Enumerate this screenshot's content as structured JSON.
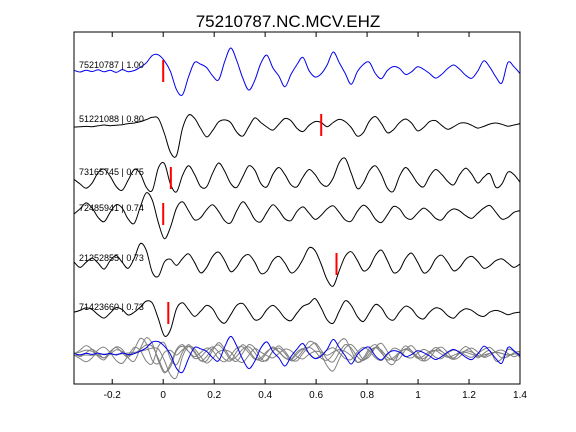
{
  "chart_data": {
    "type": "line",
    "title": "75210787.NC.MCV.EHZ",
    "xlabel": "",
    "ylabel": "",
    "xlim": [
      -0.35,
      1.4
    ],
    "x_ticks": [
      -0.2,
      0,
      0.2,
      0.4,
      0.6,
      0.8,
      1,
      1.2,
      1.4
    ],
    "x_tick_labels": [
      "-0.2",
      "0",
      "0.2",
      "0.4",
      "0.6",
      "0.8",
      "1",
      "1.2",
      "1.4"
    ],
    "grid": false,
    "colors": {
      "reference": "#0000ee",
      "trace": "#000000",
      "pick": "#ff0000",
      "stack": "#808080"
    },
    "series": [
      {
        "name": "75210787 | 1.00",
        "pick_time": 0.0,
        "values": [
          0.04,
          -0.06,
          0.05,
          -0.03,
          0.07,
          -0.05,
          0.05,
          -0.08,
          0.08,
          -0.04,
          0.03,
          0.22,
          0.48,
          0.92,
          0.95,
          0.6,
          -0.02,
          -1.1,
          -1.4,
          -0.35,
          0.5,
          0.4,
          0.2,
          -0.28,
          -0.52,
          0.55,
          1.35,
          0.62,
          -0.42,
          -1.12,
          -0.55,
          0.45,
          0.93,
          0.18,
          -0.3,
          -0.93,
          -0.2,
          0.38,
          0.8,
          0.02,
          -0.35,
          -0.17,
          0.35,
          1.12,
          0.5,
          -0.14,
          -0.78,
          -0.05,
          0.38,
          0.52,
          -0.15,
          -0.45,
          0.03,
          0.26,
          0.15,
          -0.2,
          -0.05,
          0.25,
          0.1,
          -0.15,
          -0.42,
          -0.2,
          0.15,
          0.35,
          0.1,
          -0.25,
          -0.43,
          0.0,
          0.6,
          0.22,
          -0.35,
          -0.7,
          0.5,
          0.25,
          -0.15
        ]
      },
      {
        "name": "51221088 | 0.80",
        "pick_time": 0.62,
        "values": [
          -0.12,
          -0.1,
          -0.08,
          -0.1,
          -0.05,
          0.0,
          -0.04,
          -0.02,
          0.02,
          0.08,
          0.12,
          0.2,
          0.32,
          0.45,
          0.38,
          -0.5,
          -1.6,
          -1.8,
          -0.2,
          0.58,
          0.4,
          -0.2,
          -0.7,
          -0.33,
          0.18,
          0.3,
          0.14,
          -0.42,
          -0.65,
          -0.1,
          0.42,
          0.15,
          -0.12,
          -0.3,
          0.05,
          0.38,
          0.25,
          -0.2,
          -0.38,
          -0.02,
          0.2,
          0.15,
          -0.1,
          0.15,
          0.33,
          0.2,
          -0.15,
          -0.65,
          -0.45,
          0.22,
          0.5,
          0.08,
          -0.45,
          -0.28,
          0.14,
          0.35,
          0.12,
          -0.34,
          -0.15,
          0.2,
          0.26,
          -0.02,
          -0.25,
          -0.1,
          0.1,
          0.12,
          -0.02,
          -0.18,
          -0.08,
          0.06,
          0.12,
          0.04,
          -0.07,
          0.0,
          0.08
        ]
      },
      {
        "name": "73165745 | 0.75",
        "pick_time": 0.03,
        "values": [
          -0.08,
          -0.35,
          -0.6,
          -0.3,
          0.32,
          0.52,
          0.1,
          -0.5,
          -0.72,
          -0.12,
          0.5,
          0.26,
          -0.55,
          -0.72,
          0.6,
          0.85,
          -0.35,
          -0.82,
          0.15,
          0.72,
          0.22,
          -0.5,
          -0.52,
          0.28,
          0.88,
          0.4,
          -0.32,
          -0.56,
          0.08,
          0.72,
          0.46,
          -0.32,
          -0.52,
          0.22,
          0.62,
          0.2,
          -0.4,
          -0.52,
          0.06,
          0.5,
          0.2,
          -0.32,
          -0.48,
          0.0,
          0.9,
          1.15,
          0.28,
          -0.62,
          -0.3,
          0.42,
          0.72,
          0.2,
          -0.6,
          -0.78,
          0.1,
          0.62,
          0.24,
          -0.3,
          -0.52,
          0.1,
          0.5,
          0.22,
          -0.2,
          -0.4,
          0.2,
          0.58,
          0.22,
          -0.3,
          0.05,
          0.25,
          -0.55,
          -0.35,
          0.35,
          0.2,
          -0.25
        ]
      },
      {
        "name": "72485941 | 0.74",
        "pick_time": 0.0,
        "values": [
          0.0,
          0.3,
          0.65,
          0.35,
          -0.2,
          -0.45,
          0.1,
          0.55,
          0.35,
          -0.3,
          -0.55,
          0.42,
          1.25,
          0.8,
          -0.52,
          -1.45,
          -0.78,
          0.35,
          0.72,
          0.2,
          -0.34,
          -0.22,
          0.25,
          0.55,
          0.15,
          -0.4,
          -0.52,
          0.18,
          0.72,
          0.3,
          -0.32,
          -0.46,
          0.1,
          0.55,
          0.2,
          -0.28,
          -0.38,
          0.15,
          0.42,
          0.05,
          -0.32,
          -0.08,
          0.3,
          0.48,
          0.1,
          -0.35,
          -0.42,
          0.15,
          0.52,
          0.25,
          -0.3,
          -0.5,
          -0.05,
          0.44,
          0.3,
          -0.18,
          -0.3,
          0.05,
          0.35,
          0.12,
          -0.25,
          -0.35,
          0.08,
          0.3,
          0.18,
          -0.1,
          -0.25,
          0.05,
          0.35,
          0.5,
          0.1,
          -0.3,
          -0.2,
          0.1,
          0.2
        ]
      },
      {
        "name": "21252855 | 0.73",
        "pick_time": 0.68,
        "values": [
          0.12,
          -0.2,
          0.1,
          0.35,
          0.05,
          -0.3,
          0.2,
          0.5,
          0.1,
          -0.25,
          0.35,
          1.2,
          0.8,
          -0.5,
          -0.72,
          0.12,
          0.28,
          -0.08,
          0.32,
          0.6,
          0.1,
          -0.52,
          -0.2,
          0.45,
          0.7,
          0.2,
          -0.45,
          -0.18,
          0.38,
          0.55,
          0.1,
          -0.55,
          -0.42,
          0.22,
          0.45,
          0.05,
          -0.52,
          -0.3,
          0.28,
          0.95,
          0.78,
          0.0,
          -0.92,
          -1.3,
          -0.4,
          0.45,
          0.72,
          0.22,
          -0.4,
          -0.2,
          0.5,
          0.82,
          0.2,
          -0.5,
          -0.35,
          0.32,
          0.64,
          0.12,
          -0.52,
          -0.32,
          0.3,
          0.52,
          0.1,
          -0.4,
          -0.2,
          0.28,
          0.45,
          0.15,
          -0.25,
          -0.1,
          0.2,
          0.3,
          0.05,
          -0.2,
          0.0
        ]
      },
      {
        "name": "71423660 | 0.73",
        "pick_time": 0.02,
        "values": [
          0.05,
          0.15,
          0.3,
          0.2,
          -0.1,
          -0.3,
          0.0,
          0.32,
          0.2,
          -0.12,
          0.05,
          0.35,
          0.7,
          0.58,
          -0.35,
          -1.35,
          -1.0,
          0.25,
          0.6,
          0.2,
          -0.2,
          0.1,
          0.45,
          0.25,
          -0.35,
          -0.6,
          -0.1,
          0.45,
          0.55,
          0.1,
          -0.4,
          -0.3,
          0.2,
          0.45,
          0.15,
          -0.3,
          -0.45,
          0.0,
          0.4,
          0.55,
          0.85,
          0.3,
          -0.4,
          -0.6,
          0.1,
          0.72,
          0.45,
          -0.2,
          -0.5,
          0.0,
          0.5,
          0.3,
          -0.25,
          -0.42,
          0.05,
          0.4,
          0.25,
          -0.2,
          -0.35,
          0.05,
          0.3,
          0.2,
          -0.15,
          -0.3,
          0.05,
          0.25,
          0.15,
          -0.1,
          -0.2,
          0.05,
          0.15,
          0.05,
          -0.1,
          0.0,
          0.05
        ]
      }
    ]
  }
}
